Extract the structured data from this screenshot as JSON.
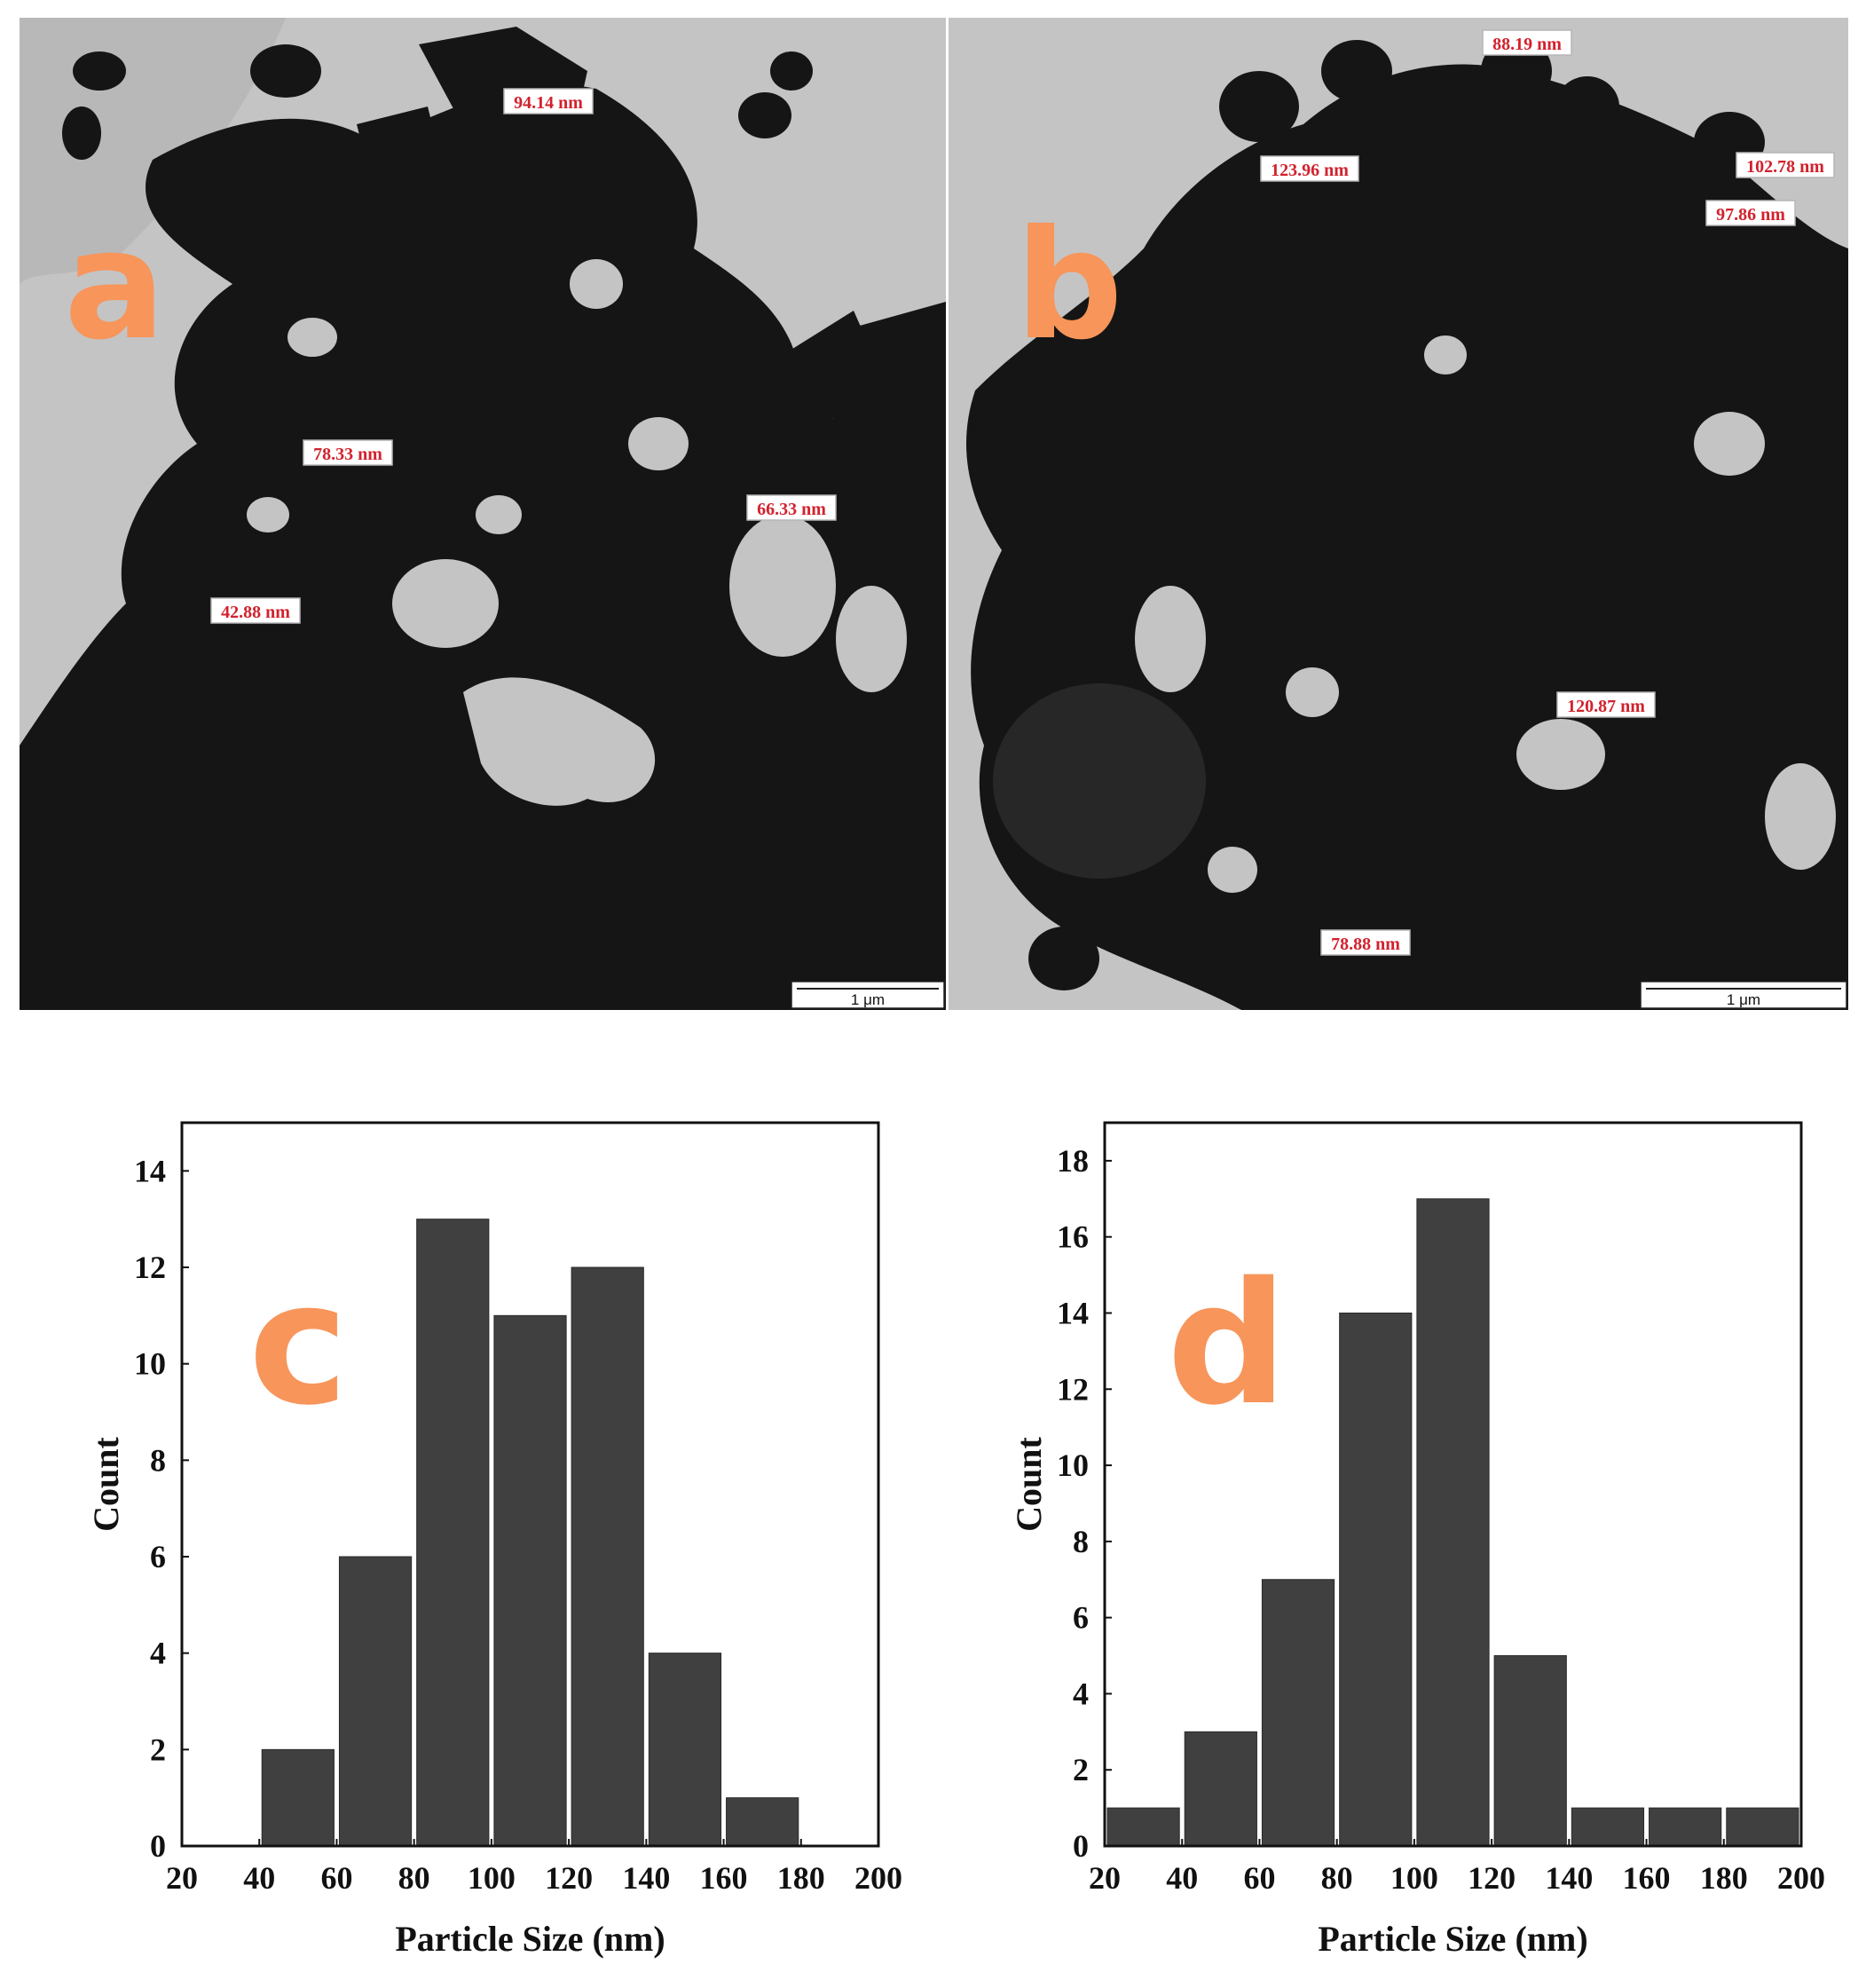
{
  "panels": {
    "a": {
      "letter": "a",
      "measurements": [
        "94.14 nm",
        "78.33 nm",
        "66.33 nm",
        "42.88 nm"
      ],
      "scale_bar": "1 μm"
    },
    "b": {
      "letter": "b",
      "measurements": [
        "88.19 nm",
        "123.96 nm",
        "102.78 nm",
        "97.86 nm",
        "120.87 nm",
        "78.88 nm"
      ],
      "scale_bar": "1 μm"
    }
  },
  "colors": {
    "bar": "#404040",
    "panel_letter": "#f7955a",
    "measurement_text": "#d2222d",
    "tem_background": "#c4c4c4",
    "particles": "#151515"
  },
  "chart_data": [
    {
      "type": "bar",
      "panel_letter": "c",
      "title": "",
      "xlabel": "Particle Size (nm)",
      "ylabel": "Count",
      "bin_edges": [
        40,
        60,
        80,
        100,
        120,
        140,
        160,
        180
      ],
      "values": [
        2,
        6,
        13,
        11,
        12,
        4,
        1
      ],
      "xlim": [
        20,
        200
      ],
      "ylim": [
        0,
        15
      ],
      "x_ticks": [
        20,
        40,
        60,
        80,
        100,
        120,
        140,
        160,
        180,
        200
      ],
      "y_ticks": [
        0,
        2,
        4,
        6,
        8,
        10,
        12,
        14
      ],
      "grid": false,
      "legend": "none"
    },
    {
      "type": "bar",
      "panel_letter": "d",
      "title": "",
      "xlabel": "Particle Size (nm)",
      "ylabel": "Count",
      "bin_edges": [
        20,
        40,
        60,
        80,
        100,
        120,
        140,
        160,
        180,
        200
      ],
      "values": [
        1,
        3,
        7,
        14,
        17,
        5,
        1,
        1,
        1
      ],
      "xlim": [
        20,
        200
      ],
      "ylim": [
        0,
        19
      ],
      "x_ticks": [
        20,
        40,
        60,
        80,
        100,
        120,
        140,
        160,
        180,
        200
      ],
      "y_ticks": [
        0,
        2,
        4,
        6,
        8,
        10,
        12,
        14,
        16,
        18
      ],
      "grid": false,
      "legend": "none"
    }
  ]
}
